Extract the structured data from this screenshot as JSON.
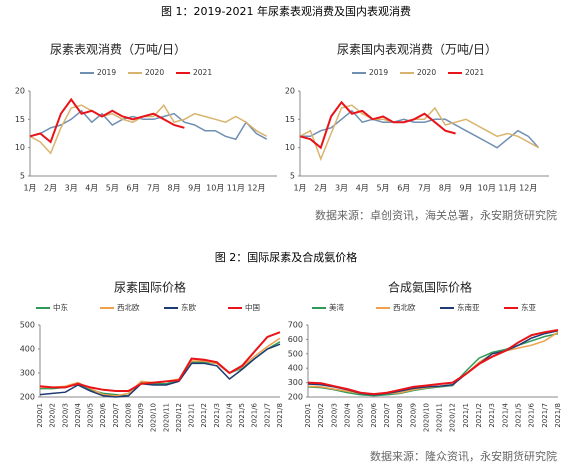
{
  "captions": [
    "图 1：2019-2021 年尿素表观消费及国内表观消费",
    "图 2：国际尿素及合成氨价格"
  ],
  "sources": [
    "数据来源：卓创资讯，海关总署，永安期货研究院",
    "数据来源：隆众资讯，永安期货研究院"
  ],
  "chart_data": [
    {
      "type": "line",
      "title": "尿素表观消费（万吨/日）",
      "categories": [
        "1月",
        null,
        "2月",
        null,
        "3月",
        null,
        "4月",
        null,
        "5月",
        null,
        "6月",
        null,
        "7月",
        null,
        "8月",
        null,
        "9月",
        null,
        "10月",
        null,
        "11月",
        null,
        "12月",
        null
      ],
      "ylim": [
        5,
        20
      ],
      "yticks": [
        5,
        10,
        15,
        20
      ],
      "series": [
        {
          "name": "2019",
          "color": "#6f8fb3",
          "values": [
            12,
            12.5,
            13.5,
            14,
            15,
            16.5,
            14.5,
            16,
            14,
            15,
            15.5,
            15,
            15,
            15.5,
            16,
            14.5,
            14,
            13,
            13,
            12,
            11.5,
            14.5,
            12.5,
            11.5
          ]
        },
        {
          "name": "2020",
          "color": "#d9b46e",
          "values": [
            12,
            11,
            9,
            13.5,
            17,
            17.5,
            16.5,
            15.5,
            16,
            15,
            14.5,
            15.5,
            15.5,
            17.5,
            14.5,
            15,
            16,
            15.5,
            15,
            14.5,
            15.5,
            14.5,
            13,
            12
          ]
        },
        {
          "name": "2021",
          "color": "#e8141a",
          "values": [
            12,
            12.5,
            11,
            16,
            18.5,
            16,
            16.5,
            15.5,
            16.5,
            15.5,
            15,
            15.5,
            16,
            15,
            14,
            13.5,
            null,
            null,
            null,
            null,
            null,
            null,
            null,
            null
          ]
        }
      ]
    },
    {
      "type": "line",
      "title": "尿素国内表观消费（万吨/日）",
      "categories": [
        "1月",
        null,
        "2月",
        null,
        "3月",
        null,
        "4月",
        null,
        "5月",
        null,
        "6月",
        null,
        "7月",
        null,
        "8月",
        null,
        "9月",
        null,
        "10月",
        null,
        "11月",
        null,
        "12月",
        null
      ],
      "ylim": [
        5,
        20
      ],
      "yticks": [
        5,
        10,
        15,
        20
      ],
      "series": [
        {
          "name": "2019",
          "color": "#6f8fb3",
          "values": [
            12,
            12,
            13,
            13.5,
            15,
            16.5,
            14.5,
            15,
            14.5,
            14.5,
            15,
            14.5,
            14.5,
            15,
            15,
            14,
            13,
            12,
            11,
            10,
            11.5,
            13,
            12,
            10
          ]
        },
        {
          "name": "2020",
          "color": "#d9b46e",
          "values": [
            12,
            13,
            8,
            12.5,
            17,
            17.5,
            16,
            15,
            15,
            14.5,
            14.5,
            15,
            15,
            17,
            14,
            14.5,
            15,
            14,
            13,
            12,
            12.5,
            12,
            11,
            10
          ]
        },
        {
          "name": "2021",
          "color": "#e8141a",
          "values": [
            12,
            11.5,
            10,
            15.5,
            18,
            16,
            16.5,
            15,
            15.5,
            14.5,
            14.5,
            15,
            16,
            14.5,
            13,
            12.5,
            null,
            null,
            null,
            null,
            null,
            null,
            null,
            null
          ]
        }
      ]
    },
    {
      "type": "line",
      "title": "尿素国际价格",
      "categories": [
        "2020/1",
        "2020/2",
        "2020/3",
        "2020/4",
        "2020/5",
        "2020/6",
        "2020/7",
        "2020/8",
        "2020/9",
        "2020/10",
        "2020/11",
        "2020/12",
        "2021/1",
        "2021/2",
        "2021/3",
        "2021/4",
        "2021/5",
        "2021/6",
        "2021/7",
        "2021/8"
      ],
      "ylim": [
        200,
        500
      ],
      "yticks": [
        200,
        300,
        400,
        500
      ],
      "series": [
        {
          "name": "中东",
          "color": "#2e9a5a",
          "values": [
            235,
            235,
            240,
            255,
            230,
            215,
            210,
            205,
            260,
            255,
            255,
            270,
            345,
            345,
            340,
            300,
            320,
            360,
            400,
            430
          ]
        },
        {
          "name": "西北欧",
          "color": "#f0a04a",
          "values": [
            240,
            240,
            245,
            260,
            235,
            210,
            205,
            215,
            265,
            260,
            265,
            275,
            350,
            350,
            340,
            300,
            325,
            370,
            410,
            445
          ]
        },
        {
          "name": "东欧",
          "color": "#1f3b73",
          "values": [
            210,
            215,
            220,
            250,
            225,
            205,
            200,
            205,
            255,
            250,
            250,
            265,
            340,
            340,
            330,
            275,
            315,
            360,
            400,
            420
          ]
        },
        {
          "name": "中国",
          "color": "#e8141a",
          "values": [
            245,
            240,
            240,
            255,
            240,
            230,
            225,
            225,
            255,
            260,
            265,
            270,
            360,
            355,
            345,
            300,
            330,
            390,
            450,
            470
          ]
        }
      ]
    },
    {
      "type": "line",
      "title": "合成氨国际价格",
      "categories": [
        "2020/1",
        "2020/2",
        "2020/3",
        "2020/4",
        "2020/5",
        "2020/6",
        "2020/7",
        "2020/8",
        "2020/9",
        "2020/10",
        "2020/11",
        "2020/12",
        "2021/1",
        "2021/2",
        "2021/3",
        "2021/4",
        "2021/5",
        "2021/6",
        "2021/7",
        "2021/8"
      ],
      "ylim": [
        200,
        700
      ],
      "yticks": [
        200,
        300,
        400,
        500,
        600,
        700
      ],
      "series": [
        {
          "name": "美湾",
          "color": "#2e9a5a",
          "values": [
            270,
            265,
            250,
            230,
            215,
            210,
            215,
            225,
            245,
            260,
            270,
            280,
            380,
            470,
            510,
            530,
            560,
            590,
            620,
            640
          ]
        },
        {
          "name": "西北欧",
          "color": "#f0a04a",
          "values": [
            275,
            270,
            255,
            240,
            225,
            220,
            225,
            230,
            250,
            265,
            275,
            285,
            360,
            440,
            500,
            520,
            540,
            560,
            590,
            650
          ]
        },
        {
          "name": "东南亚",
          "color": "#1f3b73",
          "values": [
            290,
            285,
            270,
            250,
            225,
            215,
            225,
            240,
            260,
            270,
            275,
            285,
            360,
            430,
            500,
            520,
            560,
            610,
            640,
            660
          ]
        },
        {
          "name": "东亚",
          "color": "#e8141a",
          "values": [
            300,
            295,
            275,
            255,
            230,
            220,
            230,
            250,
            270,
            280,
            290,
            300,
            360,
            430,
            480,
            520,
            580,
            630,
            650,
            665
          ]
        }
      ]
    }
  ]
}
